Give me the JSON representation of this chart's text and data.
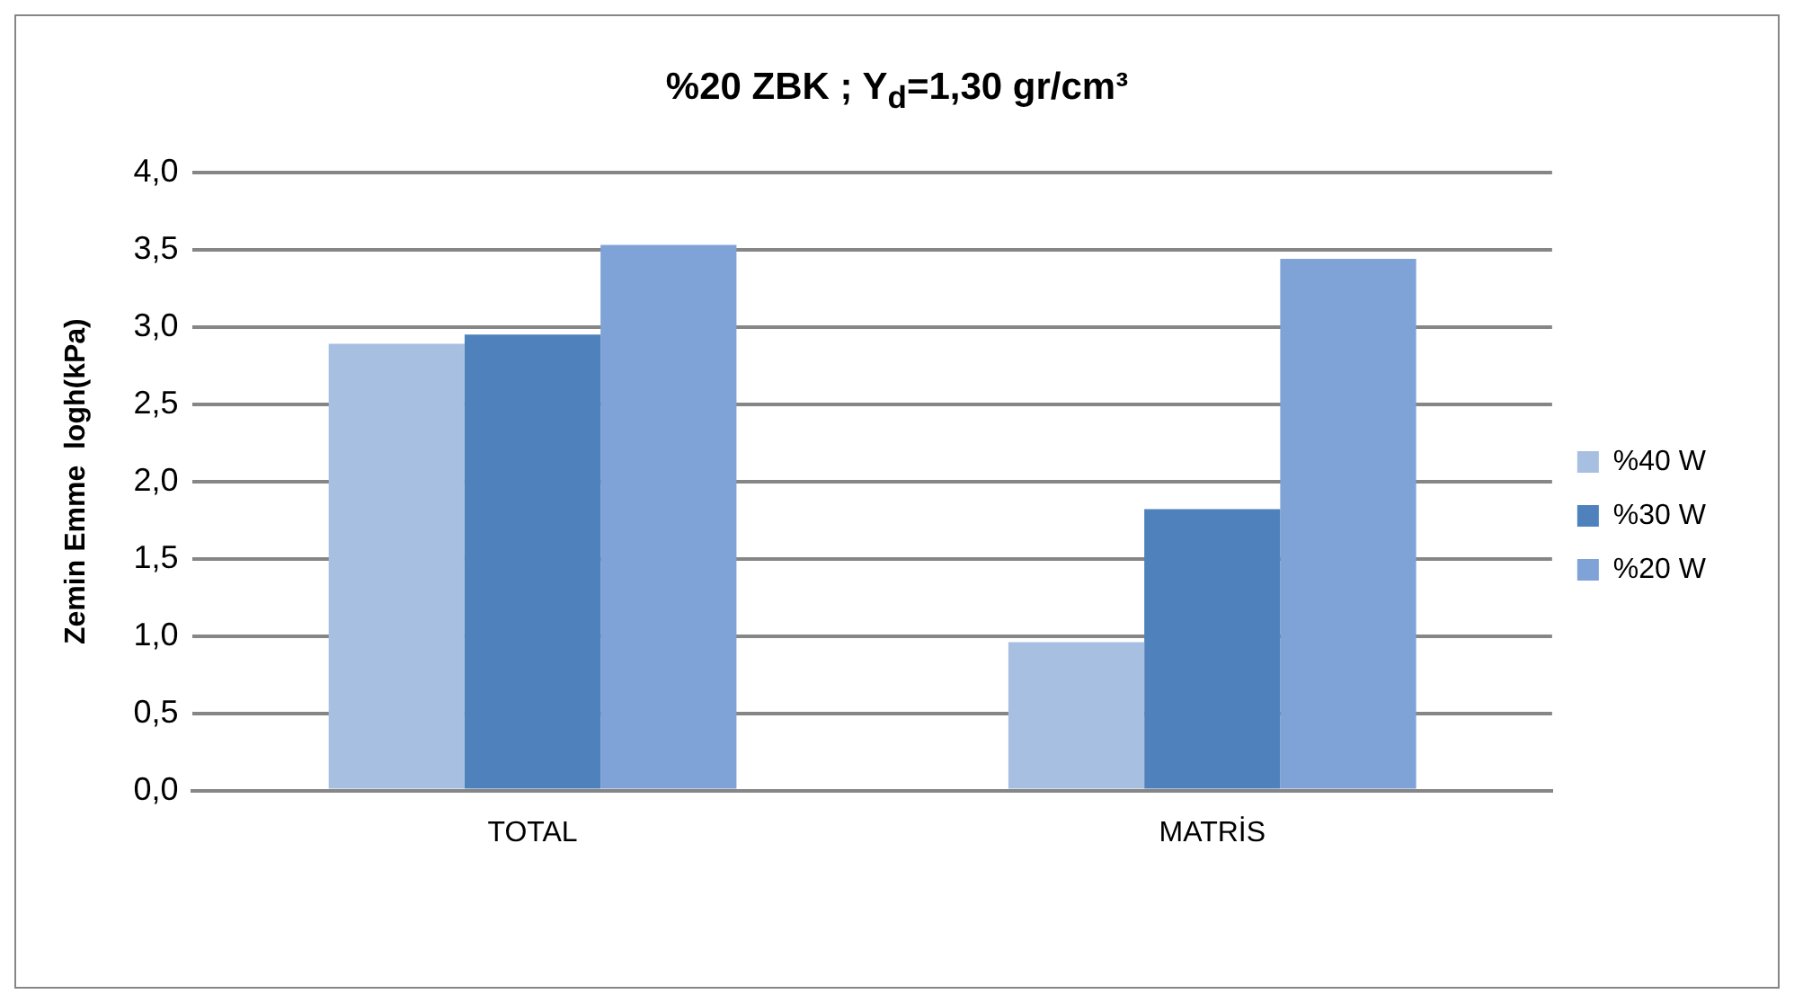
{
  "chart_data": {
    "type": "bar",
    "title": "%20 ZBK  ; Y$_{d}$=1,30 gr/cm³",
    "ylabel": "Zemin Emme  logh(kPa)",
    "categories": [
      "TOTAL",
      "MATRİS"
    ],
    "series": [
      {
        "name": "%40 W",
        "color": "#a7c0e2",
        "values": [
          2.89,
          0.96
        ]
      },
      {
        "name": "%30 W",
        "color": "#4f81bd",
        "values": [
          2.95,
          1.82
        ]
      },
      {
        "name": "%20 W",
        "color": "#7fa3d6",
        "values": [
          3.53,
          3.44
        ]
      }
    ],
    "ylim": [
      0,
      4
    ],
    "yticks": [
      {
        "value": 0,
        "label": "0,0"
      },
      {
        "value": 0.5,
        "label": "0,5"
      },
      {
        "value": 1,
        "label": "1,0"
      },
      {
        "value": 1.5,
        "label": "1,5"
      },
      {
        "value": 2,
        "label": "2,0"
      },
      {
        "value": 2.5,
        "label": "2,5"
      },
      {
        "value": 3,
        "label": "3,0"
      },
      {
        "value": 3.5,
        "label": "3,5"
      },
      {
        "value": 4,
        "label": "4,0"
      }
    ],
    "grid": "y",
    "legend": "right"
  }
}
